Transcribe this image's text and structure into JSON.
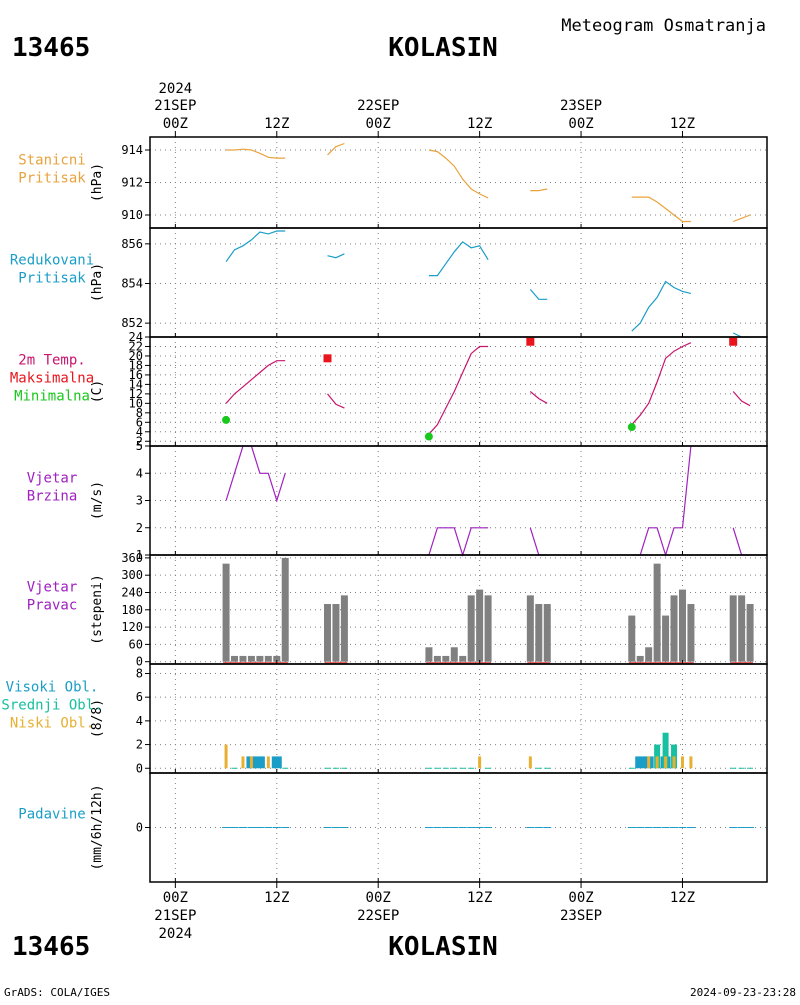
{
  "header": {
    "station_id": "13465",
    "station_name": "KOLASIN",
    "product_title": "Meteogram Osmatranja"
  },
  "footer": {
    "station_id": "13465",
    "station_name": "KOLASIN",
    "software": "GrADS: COLA/IGES",
    "generated": "2024-09-23-23:28"
  },
  "colors": {
    "station_pressure": "#e8a33d",
    "reduced_pressure": "#1a9ec8",
    "temperature": "#c8156e",
    "maximum": "#e8151c",
    "minimum": "#18c81c",
    "wind_speed": "#a020c0",
    "wind_direction_bar": "#808080",
    "wind_direction_line": "#e83030",
    "high_cloud": "#1a9ec8",
    "mid_cloud": "#16c0a0",
    "low_cloud": "#e8b030",
    "precipitation": "#1a9ec8",
    "grid": "#808080",
    "frame": "#000000"
  },
  "time_axis": {
    "top": {
      "year": "2024",
      "ticks": [
        {
          "hour": 0,
          "time": "00Z",
          "date": "21SEP"
        },
        {
          "hour": 12,
          "time": "12Z",
          "date": ""
        },
        {
          "hour": 24,
          "time": "00Z",
          "date": "22SEP"
        },
        {
          "hour": 36,
          "time": "12Z",
          "date": ""
        },
        {
          "hour": 48,
          "time": "00Z",
          "date": "23SEP"
        },
        {
          "hour": 60,
          "time": "12Z",
          "date": ""
        }
      ]
    },
    "bottom": {
      "year": "2024",
      "ticks": [
        {
          "hour": 0,
          "time": "00Z",
          "date": "21SEP"
        },
        {
          "hour": 12,
          "time": "12Z",
          "date": ""
        },
        {
          "hour": 24,
          "time": "00Z",
          "date": "22SEP"
        },
        {
          "hour": 36,
          "time": "12Z",
          "date": ""
        },
        {
          "hour": 48,
          "time": "00Z",
          "date": "23SEP"
        },
        {
          "hour": 60,
          "time": "12Z",
          "date": ""
        }
      ]
    }
  },
  "chart_data": [
    {
      "id": "station_pressure",
      "type": "line",
      "labels": [
        "Stanicni",
        "Pritisak"
      ],
      "ylabel": "(hPa)",
      "x_unit": "hours since 21SEP 00Z",
      "xlim": [
        -3,
        70
      ],
      "ylim": [
        909.2,
        914.8
      ],
      "yticks": [
        910,
        912,
        914
      ],
      "grid": true,
      "series": [
        {
          "x": [
            6,
            7,
            8,
            9,
            10,
            11,
            12,
            13
          ],
          "y": [
            914.0,
            914.0,
            914.05,
            914.0,
            913.8,
            913.55,
            913.5,
            913.5
          ]
        },
        {
          "x": [
            18,
            19,
            20
          ],
          "y": [
            913.7,
            914.2,
            914.4
          ]
        },
        {
          "x": [
            30,
            31,
            32,
            33,
            34,
            35,
            36,
            37
          ],
          "y": [
            914.0,
            913.9,
            913.5,
            913.0,
            912.2,
            911.6,
            911.3,
            911.05
          ]
        },
        {
          "x": [
            42,
            43,
            44
          ],
          "y": [
            911.5,
            911.5,
            911.6
          ]
        },
        {
          "x": [
            54,
            55,
            56,
            57,
            58,
            59,
            60,
            61
          ],
          "y": [
            911.1,
            911.1,
            911.1,
            910.8,
            910.4,
            910.0,
            909.6,
            909.6
          ]
        },
        {
          "x": [
            66,
            67,
            68
          ],
          "y": [
            909.6,
            909.8,
            910.0
          ]
        }
      ]
    },
    {
      "id": "reduced_pressure",
      "type": "line",
      "labels": [
        "Redukovani",
        "Pritisak"
      ],
      "ylabel": "(hPa)",
      "x_unit": "hours since 21SEP 00Z",
      "xlim": [
        -3,
        70
      ],
      "ylim": [
        851.3,
        856.8
      ],
      "yticks": [
        852,
        854,
        856
      ],
      "grid": true,
      "series": [
        {
          "x": [
            6,
            7,
            8,
            9,
            10,
            11,
            12,
            13
          ],
          "y": [
            855.1,
            855.7,
            855.9,
            856.2,
            856.6,
            856.5,
            856.65,
            856.65
          ]
        },
        {
          "x": [
            18,
            19,
            20
          ],
          "y": [
            855.4,
            855.3,
            855.5
          ]
        },
        {
          "x": [
            30,
            31,
            32,
            33,
            34,
            35,
            36,
            37
          ],
          "y": [
            854.4,
            854.4,
            855.0,
            855.6,
            856.1,
            855.8,
            855.9,
            855.2
          ]
        },
        {
          "x": [
            42,
            43,
            44
          ],
          "y": [
            853.7,
            853.2,
            853.2
          ]
        },
        {
          "x": [
            54,
            55,
            56,
            57,
            58,
            59,
            60,
            61
          ],
          "y": [
            851.6,
            852.0,
            852.8,
            853.3,
            854.1,
            853.8,
            853.6,
            853.5
          ]
        },
        {
          "x": [
            66,
            67,
            68
          ],
          "y": [
            851.5,
            851.3,
            851.3
          ]
        }
      ]
    },
    {
      "id": "temperature",
      "type": "line",
      "labels": [
        "2m Temp.",
        "Maksimalna",
        "Minimalna"
      ],
      "ylabel": "(C)",
      "x_unit": "hours since 21SEP 00Z",
      "xlim": [
        -3,
        70
      ],
      "ylim": [
        1,
        24
      ],
      "yticks": [
        2,
        4,
        6,
        8,
        10,
        12,
        14,
        16,
        18,
        20,
        22,
        24
      ],
      "grid": true,
      "series": [
        {
          "x": [
            6,
            7,
            8,
            9,
            10,
            11,
            12,
            13
          ],
          "y": [
            10.0,
            12.0,
            13.5,
            15.0,
            16.5,
            18.0,
            19.0,
            19.0
          ]
        },
        {
          "x": [
            18,
            19,
            20
          ],
          "y": [
            12.0,
            9.8,
            9.0
          ]
        },
        {
          "x": [
            30,
            31,
            32,
            33,
            34,
            35,
            36,
            37
          ],
          "y": [
            3.5,
            5.5,
            9.0,
            12.5,
            16.5,
            20.5,
            22.0,
            22.0
          ]
        },
        {
          "x": [
            42,
            43,
            44
          ],
          "y": [
            12.5,
            11.0,
            10.0
          ]
        },
        {
          "x": [
            54,
            55,
            56,
            57,
            58,
            59,
            60,
            61
          ],
          "y": [
            5.5,
            7.5,
            10.0,
            14.5,
            19.5,
            21.0,
            22.0,
            22.8
          ]
        },
        {
          "x": [
            66,
            67,
            68
          ],
          "y": [
            12.5,
            10.5,
            9.5
          ]
        }
      ],
      "maximum": [
        {
          "x": 18,
          "y": 19.5
        },
        {
          "x": 42,
          "y": 23.0
        },
        {
          "x": 66,
          "y": 23.0
        }
      ],
      "minimum": [
        {
          "x": 6,
          "y": 6.5
        },
        {
          "x": 30,
          "y": 3.0
        },
        {
          "x": 54,
          "y": 5.0
        }
      ]
    },
    {
      "id": "wind_speed",
      "type": "line",
      "labels": [
        "Vjetar",
        "Brzina"
      ],
      "ylabel": "(m/s)",
      "x_unit": "hours since 21SEP 00Z",
      "xlim": [
        -3,
        70
      ],
      "ylim": [
        1,
        5
      ],
      "yticks": [
        1,
        2,
        3,
        4,
        5
      ],
      "grid": true,
      "series": [
        {
          "x": [
            6,
            7,
            8,
            9,
            10,
            11,
            12,
            13
          ],
          "y": [
            3,
            4,
            5,
            5,
            4,
            4,
            3,
            4
          ]
        },
        {
          "x": [
            18,
            19,
            20
          ],
          "y": [
            1,
            1,
            1
          ]
        },
        {
          "x": [
            30,
            31,
            32,
            33,
            34,
            35,
            36,
            37
          ],
          "y": [
            1,
            2,
            2,
            2,
            1,
            2,
            2,
            2
          ]
        },
        {
          "x": [
            42,
            43,
            44
          ],
          "y": [
            2,
            1,
            1
          ]
        },
        {
          "x": [
            54,
            55,
            56,
            57,
            58,
            59,
            60,
            61
          ],
          "y": [
            1,
            1,
            2,
            2,
            1,
            2,
            2,
            5
          ]
        },
        {
          "x": [
            66,
            67,
            68
          ],
          "y": [
            2,
            1,
            1
          ]
        }
      ]
    },
    {
      "id": "wind_direction",
      "type": "bar",
      "labels": [
        "Vjetar",
        "Pravac"
      ],
      "ylabel": "(stepeni)",
      "x_unit": "hours since 21SEP 00Z",
      "xlim": [
        -3,
        70
      ],
      "ylim": [
        -8,
        370
      ],
      "yticks": [
        0,
        60,
        120,
        180,
        240,
        300,
        360
      ],
      "grid": true,
      "x": [
        6,
        7,
        8,
        9,
        10,
        11,
        12,
        13,
        18,
        19,
        20,
        30,
        31,
        32,
        33,
        34,
        35,
        36,
        37,
        42,
        43,
        44,
        54,
        55,
        56,
        57,
        58,
        59,
        60,
        61,
        66,
        67,
        68
      ],
      "values": [
        340,
        20,
        20,
        20,
        20,
        20,
        20,
        360,
        200,
        200,
        230,
        50,
        20,
        20,
        50,
        20,
        230,
        250,
        230,
        230,
        200,
        200,
        160,
        20,
        50,
        340,
        160,
        230,
        250,
        200,
        230,
        230,
        200
      ]
    },
    {
      "id": "cloud_cover",
      "type": "bar",
      "labels": [
        "Visoki Obl.",
        "Srednji Obl.",
        "Niski Obl."
      ],
      "ylabel": "(8/8)",
      "x_unit": "hours since 21SEP 00Z",
      "xlim": [
        -3,
        70
      ],
      "ylim": [
        -0.4,
        8.8
      ],
      "yticks": [
        0,
        2,
        4,
        6,
        8
      ],
      "grid": true,
      "x": [
        6,
        7,
        8,
        9,
        10,
        11,
        12,
        13,
        18,
        19,
        20,
        30,
        31,
        32,
        33,
        34,
        35,
        36,
        37,
        42,
        43,
        44,
        54,
        55,
        56,
        57,
        58,
        59,
        60,
        61,
        66,
        67,
        68
      ],
      "series": [
        {
          "name": "Visoki Obl.",
          "values": [
            0,
            0,
            0,
            1,
            1,
            0,
            1,
            0,
            0,
            0,
            0,
            0,
            0,
            0,
            0,
            0,
            0,
            0,
            0,
            0,
            0,
            0,
            0,
            1,
            1,
            0,
            1,
            0,
            0,
            0,
            0,
            0,
            0
          ]
        },
        {
          "name": "Srednji Obl.",
          "values": [
            0,
            0,
            0,
            0,
            0,
            0,
            0,
            0,
            0,
            0,
            0,
            0,
            0,
            0,
            0,
            0,
            0,
            0,
            0,
            0,
            0,
            0,
            0,
            0,
            0,
            2,
            3,
            2,
            0,
            0,
            0,
            0,
            0
          ]
        },
        {
          "name": "Niski Obl.",
          "values": [
            2,
            0,
            1,
            1,
            0,
            1,
            0,
            0,
            0,
            0,
            0,
            0,
            0,
            0,
            0,
            0,
            0,
            1,
            0,
            1,
            0,
            0,
            0,
            0,
            1,
            1,
            1,
            1,
            1,
            1,
            0,
            0,
            0
          ]
        }
      ]
    },
    {
      "id": "precipitation",
      "type": "bar",
      "labels": [
        "Padavine"
      ],
      "ylabel": "(mm/6h/12h)",
      "x_unit": "hours since 21SEP 00Z",
      "xlim": [
        -3,
        70
      ],
      "ylim": [
        -1,
        1
      ],
      "yticks": [
        0
      ],
      "grid": true,
      "x": [
        6,
        7,
        8,
        9,
        10,
        11,
        12,
        13,
        18,
        19,
        20,
        30,
        31,
        32,
        33,
        34,
        35,
        36,
        37,
        42,
        43,
        44,
        54,
        55,
        56,
        57,
        58,
        59,
        60,
        61,
        66,
        67,
        68
      ],
      "values": [
        0,
        0,
        0,
        0,
        0,
        0,
        0,
        0,
        0,
        0,
        0,
        0,
        0,
        0,
        0,
        0,
        0,
        0,
        0,
        0,
        0,
        0,
        0,
        0,
        0,
        0,
        0,
        0,
        0,
        0,
        0,
        0,
        0
      ]
    }
  ]
}
